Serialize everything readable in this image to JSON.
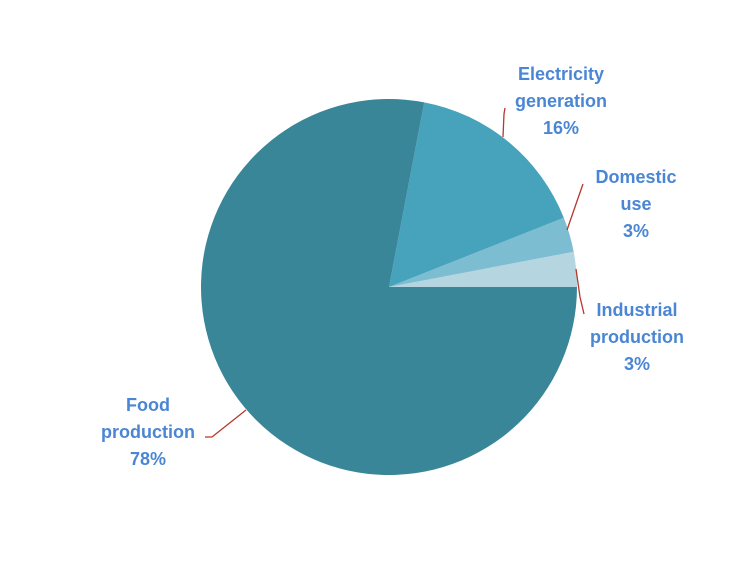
{
  "chart_data": {
    "type": "pie",
    "start_angle_deg": 0,
    "direction": "counterclockwise",
    "slices": [
      {
        "name": "Industrial production",
        "label_lines": [
          "Industrial",
          "production"
        ],
        "percent_label": "3%",
        "value": 3,
        "color": "#b5d5e0"
      },
      {
        "name": "Domestic use",
        "label_lines": [
          "Domestic",
          "use"
        ],
        "percent_label": "3%",
        "value": 3,
        "color": "#7dbdd2"
      },
      {
        "name": "Electricity generation",
        "label_lines": [
          "Electricity",
          "generation"
        ],
        "percent_label": "16%",
        "value": 16,
        "color": "#47a3bb"
      },
      {
        "name": "Food production",
        "label_lines": [
          "Food",
          "production"
        ],
        "percent_label": "78%",
        "value": 78,
        "color": "#3a8699"
      }
    ],
    "label_color": "#4a86d4",
    "leader_color": "#b5382c"
  }
}
